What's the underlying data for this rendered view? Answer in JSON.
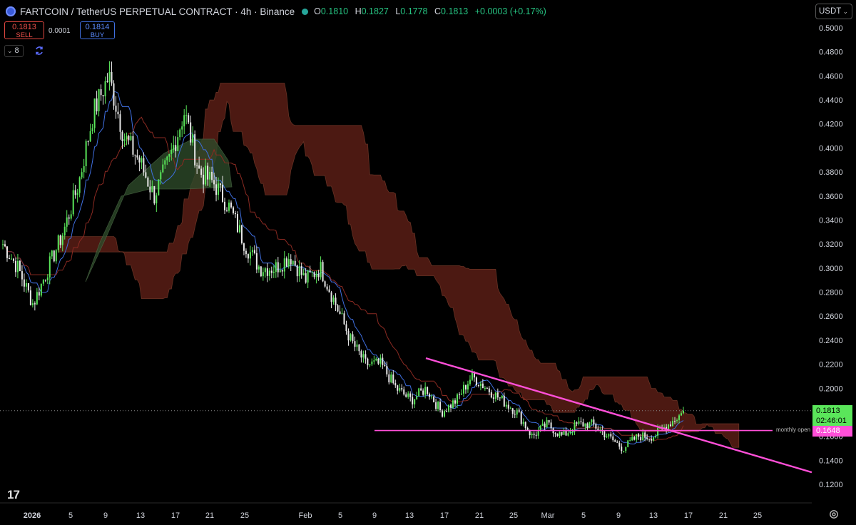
{
  "header": {
    "title": "FARTCOIN / TetherUS PERPETUAL CONTRACT · 4h · Binance",
    "ohlc": {
      "o_label": "O",
      "o": "0.1810",
      "h_label": "H",
      "h": "0.1827",
      "l_label": "L",
      "l": "0.1778",
      "c_label": "C",
      "c": "0.1813",
      "change": "+0.0003 (+0.17%)"
    }
  },
  "trade_panel": {
    "sell_price": "0.1813",
    "sell_label": "SELL",
    "spread": "0.0001",
    "buy_price": "0.1814",
    "buy_label": "BUY"
  },
  "indicators_toggle": {
    "count": "8"
  },
  "currency_select": {
    "value": "USDT"
  },
  "price_axis": {
    "labels": [
      "0.5000",
      "0.4800",
      "0.4600",
      "0.4400",
      "0.4200",
      "0.4000",
      "0.3800",
      "0.3600",
      "0.3400",
      "0.3200",
      "0.3000",
      "0.2800",
      "0.2600",
      "0.2400",
      "0.2200",
      "0.2000",
      "0.1800",
      "0.1600",
      "0.1400",
      "0.1200"
    ]
  },
  "time_axis": {
    "labels": [
      "2026",
      "5",
      "9",
      "13",
      "17",
      "21",
      "25",
      "Feb",
      "5",
      "9",
      "13",
      "17",
      "21",
      "25",
      "Mar",
      "5",
      "9",
      "13",
      "17",
      "21",
      "25"
    ]
  },
  "last_price_tag": {
    "price": "0.1813",
    "countdown": "02:46:01"
  },
  "monthly_open": {
    "label": "monthly open",
    "value": "0.1648"
  },
  "colors": {
    "background": "#000000",
    "up": "#5ae65a",
    "down": "#e8e8e8",
    "cloud_bear": "#5a1e16",
    "cloud_bull": "#2e4a2a",
    "tenkan": "#3f6fe0",
    "kijun": "#8b2a22",
    "trendline": "#ff4fd8",
    "sell": "#f0504a",
    "buy": "#5b8cff"
  },
  "chart_data": {
    "type": "candlestick",
    "timeframe": "4h",
    "ylim": [
      0.12,
      0.5
    ],
    "price_ticks": [
      0.5,
      0.48,
      0.46,
      0.44,
      0.42,
      0.4,
      0.38,
      0.36,
      0.34,
      0.32,
      0.3,
      0.28,
      0.26,
      0.24,
      0.22,
      0.2,
      0.18,
      0.16,
      0.14,
      0.12
    ],
    "close_path": [
      0.32,
      0.3,
      0.27,
      0.3,
      0.33,
      0.37,
      0.43,
      0.46,
      0.41,
      0.39,
      0.36,
      0.39,
      0.43,
      0.38,
      0.37,
      0.35,
      0.32,
      0.3,
      0.3,
      0.31,
      0.29,
      0.3,
      0.27,
      0.24,
      0.22,
      0.22,
      0.2,
      0.19,
      0.2,
      0.18,
      0.19,
      0.21,
      0.2,
      0.19,
      0.18,
      0.16,
      0.17,
      0.16,
      0.17,
      0.17,
      0.16,
      0.15,
      0.16,
      0.16,
      0.17,
      0.18
    ],
    "trendline": {
      "from": 0.225,
      "to": 0.13
    },
    "monthly_open": 0.1648,
    "last_price": 0.1813
  }
}
